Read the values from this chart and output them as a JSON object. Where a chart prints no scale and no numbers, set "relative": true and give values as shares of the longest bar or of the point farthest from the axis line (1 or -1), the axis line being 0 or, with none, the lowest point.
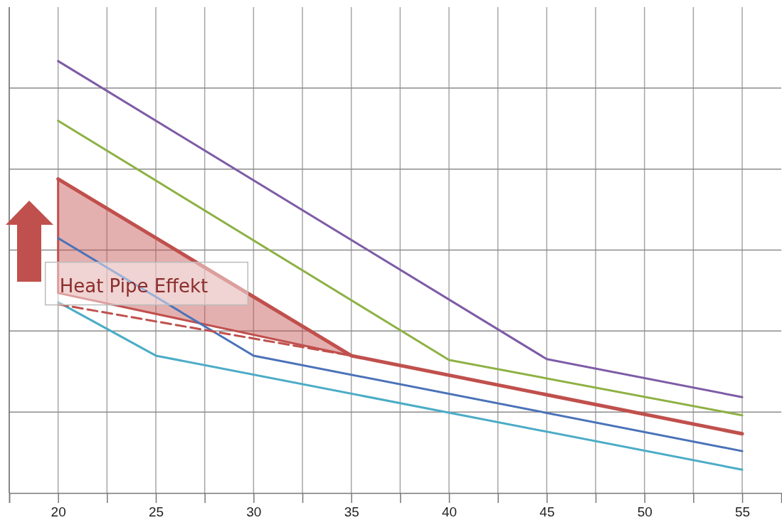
{
  "chart_data": {
    "type": "line",
    "relative": true,
    "grid": true,
    "xlim": [
      17.5,
      57
    ],
    "xticks": [
      {
        "value": 17.5,
        "label": null
      },
      20,
      {
        "value": 22.5,
        "label": null
      },
      25,
      {
        "value": 27.5,
        "label": null
      },
      30,
      {
        "value": 32.5,
        "label": null
      },
      35,
      {
        "value": 37.5,
        "label": null
      },
      40,
      {
        "value": 42.5,
        "label": null
      },
      45,
      {
        "value": 47.5,
        "label": null
      },
      50,
      {
        "value": 52.5,
        "label": null
      },
      55
    ],
    "series": [
      {
        "color": "#7e5ca6",
        "x": [
          20,
          45,
          55
        ],
        "values": [
          1,
          0.31,
          0.222
        ]
      },
      {
        "color": "#8db144",
        "x": [
          20,
          40,
          55
        ],
        "values": [
          0.862,
          0.308,
          0.18
        ]
      },
      {
        "color": "#4a72b8",
        "x": [
          20,
          30,
          55
        ],
        "values": [
          0.59,
          0.318,
          0.097
        ]
      },
      {
        "color": "#4bacc6",
        "x": [
          20,
          25,
          55
        ],
        "values": [
          0.442,
          0.318,
          0.054
        ]
      },
      {
        "color": "#c0504d",
        "x": [
          20,
          35
        ],
        "values": [
          0.437,
          0.318
        ],
        "line_style": "dashed"
      },
      {
        "color": "#c0504d",
        "x": [
          20,
          35,
          55
        ],
        "values": [
          0.727,
          0.318,
          0.137
        ],
        "lower": [
          0.463,
          0.318,
          null
        ],
        "upper": [
          0.727,
          0.318,
          null
        ]
      }
    ],
    "annotations": [
      {
        "text": "Heat Pipe Effekt",
        "x": 20,
        "y": 0.48
      }
    ]
  }
}
